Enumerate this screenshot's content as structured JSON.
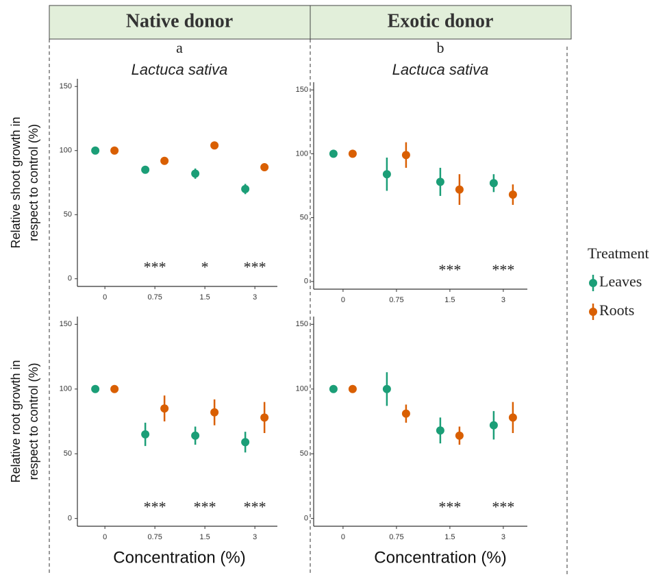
{
  "headers": [
    "Native donor",
    "Exotic donor"
  ],
  "legend_title": "Treatment",
  "chart_data": [
    {
      "type": "point",
      "label": "a",
      "title": "Lactuca sativa",
      "ylabel": [
        "Relative shoot growth in",
        "respect to control (%)"
      ],
      "categories": [
        "0",
        "0.75",
        "1.5",
        "3"
      ],
      "ylim": [
        -6,
        156
      ],
      "yticks": [
        0,
        50,
        100,
        150
      ],
      "series": [
        {
          "name": "Leaves",
          "color": "#1b9e77",
          "values": [
            100,
            85,
            82,
            70
          ],
          "errors": [
            0,
            3,
            4,
            4
          ]
        },
        {
          "name": "Roots",
          "color": "#d95f02",
          "values": [
            100,
            92,
            104,
            87
          ],
          "errors": [
            0,
            3,
            3,
            3
          ]
        }
      ],
      "annotations": [
        null,
        "***",
        "*",
        "***"
      ]
    },
    {
      "type": "point",
      "label": "b",
      "title": "Lactuca sativa",
      "categories": [
        "0",
        "0.75",
        "1.5",
        "3"
      ],
      "ylim": [
        -6,
        156
      ],
      "yticks": [
        0,
        50,
        100,
        150
      ],
      "series": [
        {
          "name": "Leaves",
          "color": "#1b9e77",
          "values": [
            100,
            84,
            78,
            77
          ],
          "errors": [
            0,
            13,
            11,
            7
          ]
        },
        {
          "name": "Roots",
          "color": "#d95f02",
          "values": [
            100,
            99,
            72,
            68
          ],
          "errors": [
            0,
            10,
            12,
            8
          ]
        }
      ],
      "annotations": [
        null,
        null,
        "***",
        "***"
      ]
    },
    {
      "type": "point",
      "ylabel": [
        "Relative root growth in",
        "respect to control (%)"
      ],
      "xlabel": "Concentration (%)",
      "categories": [
        "0",
        "0.75",
        "1.5",
        "3"
      ],
      "ylim": [
        -6,
        156
      ],
      "yticks": [
        0,
        50,
        100,
        150
      ],
      "series": [
        {
          "name": "Leaves",
          "color": "#1b9e77",
          "values": [
            100,
            65,
            64,
            59
          ],
          "errors": [
            0,
            9,
            7,
            8
          ]
        },
        {
          "name": "Roots",
          "color": "#d95f02",
          "values": [
            100,
            85,
            82,
            78
          ],
          "errors": [
            0,
            10,
            10,
            12
          ]
        }
      ],
      "annotations": [
        null,
        "***",
        "***",
        "***"
      ]
    },
    {
      "type": "point",
      "xlabel": "Concentration (%)",
      "categories": [
        "0",
        "0.75",
        "1.5",
        "3"
      ],
      "ylim": [
        -6,
        156
      ],
      "yticks": [
        0,
        50,
        100,
        150
      ],
      "series": [
        {
          "name": "Leaves",
          "color": "#1b9e77",
          "values": [
            100,
            100,
            68,
            72
          ],
          "errors": [
            0,
            13,
            10,
            11
          ]
        },
        {
          "name": "Roots",
          "color": "#d95f02",
          "values": [
            100,
            81,
            64,
            78
          ],
          "errors": [
            0,
            7,
            7,
            12
          ]
        }
      ],
      "annotations": [
        null,
        null,
        "***",
        "***"
      ]
    }
  ]
}
